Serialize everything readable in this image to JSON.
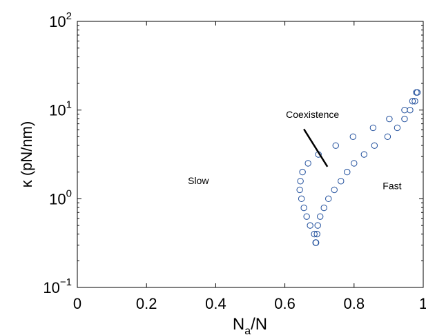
{
  "chart_data": {
    "type": "scatter",
    "xlabel_main": "N",
    "xlabel_sub": "a",
    "xlabel_tail": "/N",
    "ylabel": "κ (pN/nm)",
    "xlim": [
      0,
      1
    ],
    "ylim": [
      0.1,
      100
    ],
    "yscale": "log",
    "grid": false,
    "x_ticks": [
      0,
      0.2,
      0.4,
      0.6,
      0.8,
      1
    ],
    "x_tick_labels": [
      "0",
      "0.2",
      "0.4",
      "0.6",
      "0.8",
      "1"
    ],
    "y_ticks": [
      0.1,
      1,
      10,
      100
    ],
    "y_tick_bases": [
      "10",
      "10",
      "10",
      "10"
    ],
    "y_tick_exponents": [
      "−1",
      "0",
      "1",
      "2"
    ],
    "marker_color": "#1f4e9c",
    "series": [
      {
        "marker": "open-circle",
        "points": [
          {
            "x": 0.689,
            "y": 0.32
          },
          {
            "x": 0.69,
            "y": 0.32
          },
          {
            "x": 0.685,
            "y": 0.4
          },
          {
            "x": 0.693,
            "y": 0.4
          },
          {
            "x": 0.673,
            "y": 0.5
          },
          {
            "x": 0.695,
            "y": 0.5
          },
          {
            "x": 0.663,
            "y": 0.63
          },
          {
            "x": 0.702,
            "y": 0.63
          },
          {
            "x": 0.655,
            "y": 0.79
          },
          {
            "x": 0.713,
            "y": 0.79
          },
          {
            "x": 0.648,
            "y": 1.0
          },
          {
            "x": 0.726,
            "y": 1.0
          },
          {
            "x": 0.643,
            "y": 1.26
          },
          {
            "x": 0.743,
            "y": 1.26
          },
          {
            "x": 0.645,
            "y": 1.58
          },
          {
            "x": 0.762,
            "y": 1.58
          },
          {
            "x": 0.651,
            "y": 2.0
          },
          {
            "x": 0.78,
            "y": 2.0
          },
          {
            "x": 0.667,
            "y": 2.51
          },
          {
            "x": 0.8,
            "y": 2.51
          },
          {
            "x": 0.697,
            "y": 3.16
          },
          {
            "x": 0.829,
            "y": 3.16
          },
          {
            "x": 0.747,
            "y": 3.98
          },
          {
            "x": 0.859,
            "y": 3.98
          },
          {
            "x": 0.797,
            "y": 5.01
          },
          {
            "x": 0.897,
            "y": 5.01
          },
          {
            "x": 0.855,
            "y": 6.31
          },
          {
            "x": 0.925,
            "y": 6.31
          },
          {
            "x": 0.902,
            "y": 7.94
          },
          {
            "x": 0.946,
            "y": 7.94
          },
          {
            "x": 0.946,
            "y": 10.0
          },
          {
            "x": 0.962,
            "y": 10.0
          },
          {
            "x": 0.969,
            "y": 12.6
          },
          {
            "x": 0.976,
            "y": 12.6
          },
          {
            "x": 0.98,
            "y": 15.8
          },
          {
            "x": 0.983,
            "y": 15.8
          }
        ]
      }
    ],
    "annotations": [
      {
        "text": "Slow",
        "x": 0.35,
        "y": 1.6
      },
      {
        "text": "Fast",
        "x": 0.91,
        "y": 1.4
      },
      {
        "text": "Coexistence",
        "x": 0.68,
        "y": 8.9
      }
    ],
    "arrow": {
      "x1": 0.655,
      "y1": 6.1,
      "x2": 0.723,
      "y2": 2.3
    }
  }
}
